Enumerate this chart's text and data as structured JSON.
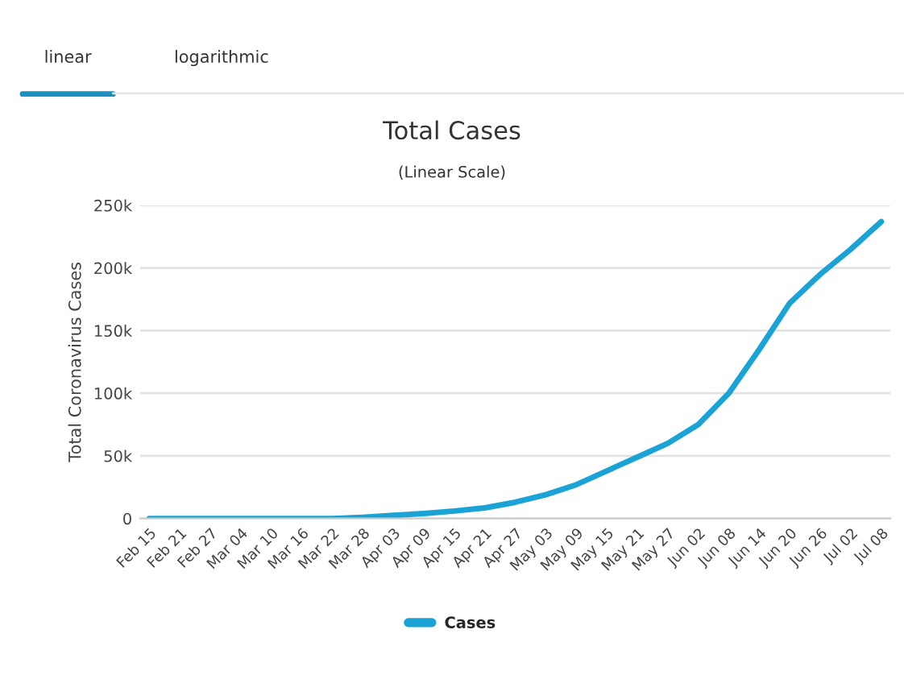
{
  "chart_data": {
    "type": "line",
    "title": "Total Cases",
    "subtitle": "(Linear Scale)",
    "ylabel": "Total Coronavirus Cases",
    "annotations": [
      "linear",
      "logarithmic"
    ],
    "categories": [
      "Feb 15",
      "Feb 21",
      "Feb 27",
      "Mar 04",
      "Mar 10",
      "Mar 16",
      "Mar 22",
      "Mar 28",
      "Apr 03",
      "Apr 09",
      "Apr 15",
      "Apr 21",
      "Apr 27",
      "May 03",
      "May 09",
      "May 15",
      "May 21",
      "May 27",
      "Jun 02",
      "Jun 08",
      "Jun 14",
      "Jun 20",
      "Jun 26",
      "Jul 02",
      "Jul 08"
    ],
    "series": [
      {
        "name": "Cases",
        "color": "#1aa3d4",
        "values": [
          0,
          0,
          0,
          0,
          0,
          0,
          0,
          1000,
          2500,
          4000,
          6000,
          8500,
          13000,
          19000,
          27000,
          38000,
          49000,
          60000,
          75000,
          100000,
          135000,
          172000,
          195000,
          215000,
          237000
        ]
      }
    ],
    "ylim": [
      0,
      250000
    ],
    "yticks": [
      0,
      {
        "value": 50000,
        "label": "50k"
      },
      {
        "value": 100000,
        "label": "100k"
      },
      {
        "value": 150000,
        "label": "150k"
      },
      {
        "value": 200000,
        "label": "200k"
      },
      {
        "value": 250000,
        "label": "250k"
      }
    ],
    "grid": "y",
    "legend": "bottom",
    "marker": "none",
    "line_style": "solid"
  }
}
